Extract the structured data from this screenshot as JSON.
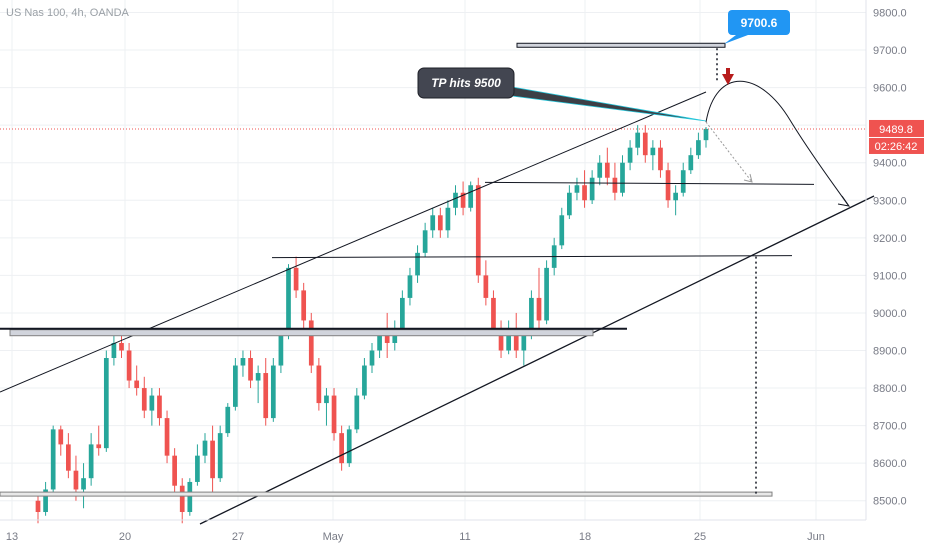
{
  "header": {
    "title": "US Nas 100, 4h, OANDA"
  },
  "chart_data": {
    "type": "candlestick",
    "xlabel": "",
    "ylabel": "",
    "ylim": [
      8470,
      9830
    ],
    "y_ticks": [
      "9800.0",
      "9700.0",
      "9600.0",
      "9500.0",
      "9400.0",
      "9300.0",
      "9200.0",
      "9100.0",
      "9000.0",
      "8900.0",
      "8800.0",
      "8700.0",
      "8600.0",
      "8500.0"
    ],
    "x_ticks": [
      "13",
      "20",
      "27",
      "May",
      "11",
      "18",
      "25",
      "Jun"
    ],
    "grid": true,
    "colors": {
      "up": "#26a69a",
      "down": "#ef5350",
      "price": "#ef5350",
      "callout": "#2196f3",
      "note": "#434651"
    },
    "price_label": "9489.8",
    "countdown_label": "02:26:42",
    "target_label": "9700.6",
    "annotation": "TP hits 9500",
    "key_levels": [
      9710,
      9345,
      9150,
      8950,
      8515
    ],
    "candles": [
      [
        8500,
        8520,
        8440,
        8470
      ],
      [
        8470,
        8550,
        8460,
        8530
      ],
      [
        8530,
        8700,
        8520,
        8690
      ],
      [
        8690,
        8700,
        8620,
        8650
      ],
      [
        8650,
        8680,
        8560,
        8580
      ],
      [
        8580,
        8620,
        8500,
        8530
      ],
      [
        8530,
        8600,
        8480,
        8560
      ],
      [
        8560,
        8680,
        8540,
        8650
      ],
      [
        8650,
        8700,
        8620,
        8640
      ],
      [
        8640,
        8900,
        8630,
        8880
      ],
      [
        8880,
        8950,
        8860,
        8920
      ],
      [
        8920,
        8960,
        8880,
        8900
      ],
      [
        8900,
        8920,
        8800,
        8820
      ],
      [
        8820,
        8860,
        8780,
        8800
      ],
      [
        8800,
        8830,
        8720,
        8740
      ],
      [
        8740,
        8800,
        8700,
        8780
      ],
      [
        8780,
        8800,
        8700,
        8720
      ],
      [
        8720,
        8740,
        8600,
        8620
      ],
      [
        8620,
        8640,
        8520,
        8540
      ],
      [
        8540,
        8560,
        8440,
        8470
      ],
      [
        8470,
        8560,
        8460,
        8550
      ],
      [
        8550,
        8650,
        8540,
        8620
      ],
      [
        8620,
        8680,
        8600,
        8660
      ],
      [
        8660,
        8700,
        8520,
        8560
      ],
      [
        8560,
        8700,
        8550,
        8680
      ],
      [
        8680,
        8760,
        8670,
        8750
      ],
      [
        8750,
        8880,
        8740,
        8860
      ],
      [
        8860,
        8900,
        8830,
        8880
      ],
      [
        8880,
        8900,
        8800,
        8820
      ],
      [
        8820,
        8860,
        8760,
        8840
      ],
      [
        8840,
        8880,
        8700,
        8720
      ],
      [
        8720,
        8880,
        8710,
        8860
      ],
      [
        8860,
        8960,
        8840,
        8940
      ],
      [
        8940,
        9130,
        8930,
        9120
      ],
      [
        9120,
        9150,
        9040,
        9060
      ],
      [
        9060,
        9080,
        8960,
        8980
      ],
      [
        8980,
        9000,
        8840,
        8860
      ],
      [
        8860,
        8880,
        8740,
        8760
      ],
      [
        8760,
        8800,
        8700,
        8780
      ],
      [
        8780,
        8800,
        8660,
        8680
      ],
      [
        8680,
        8700,
        8580,
        8600
      ],
      [
        8600,
        8700,
        8590,
        8690
      ],
      [
        8690,
        8800,
        8680,
        8780
      ],
      [
        8780,
        8880,
        8770,
        8860
      ],
      [
        8860,
        8920,
        8840,
        8900
      ],
      [
        8900,
        8960,
        8880,
        8940
      ],
      [
        8940,
        9000,
        8880,
        8920
      ],
      [
        8920,
        8980,
        8900,
        8960
      ],
      [
        8960,
        9060,
        8950,
        9040
      ],
      [
        9040,
        9120,
        9020,
        9100
      ],
      [
        9100,
        9180,
        9080,
        9160
      ],
      [
        9160,
        9240,
        9150,
        9220
      ],
      [
        9220,
        9280,
        9200,
        9260
      ],
      [
        9260,
        9280,
        9200,
        9220
      ],
      [
        9220,
        9300,
        9200,
        9280
      ],
      [
        9280,
        9340,
        9260,
        9320
      ],
      [
        9320,
        9350,
        9260,
        9280
      ],
      [
        9280,
        9350,
        9270,
        9340
      ],
      [
        9340,
        9360,
        9080,
        9100
      ],
      [
        9100,
        9140,
        9020,
        9040
      ],
      [
        9040,
        9060,
        8940,
        8960
      ],
      [
        8960,
        8980,
        8880,
        8900
      ],
      [
        8900,
        8980,
        8890,
        8960
      ],
      [
        8960,
        9000,
        8880,
        8900
      ],
      [
        8900,
        8960,
        8860,
        8940
      ],
      [
        8940,
        9060,
        8930,
        9040
      ],
      [
        9040,
        9120,
        8960,
        8980
      ],
      [
        8980,
        9140,
        8970,
        9120
      ],
      [
        9120,
        9200,
        9100,
        9180
      ],
      [
        9180,
        9280,
        9170,
        9260
      ],
      [
        9260,
        9340,
        9250,
        9320
      ],
      [
        9320,
        9360,
        9300,
        9340
      ],
      [
        9340,
        9380,
        9280,
        9300
      ],
      [
        9300,
        9380,
        9290,
        9360
      ],
      [
        9360,
        9420,
        9340,
        9400
      ],
      [
        9400,
        9440,
        9340,
        9360
      ],
      [
        9360,
        9400,
        9300,
        9320
      ],
      [
        9320,
        9420,
        9310,
        9400
      ],
      [
        9400,
        9460,
        9380,
        9440
      ],
      [
        9440,
        9500,
        9420,
        9480
      ],
      [
        9480,
        9500,
        9400,
        9420
      ],
      [
        9420,
        9460,
        9380,
        9440
      ],
      [
        9440,
        9460,
        9360,
        9380
      ],
      [
        9380,
        9400,
        9280,
        9300
      ],
      [
        9300,
        9340,
        9260,
        9320
      ],
      [
        9320,
        9400,
        9310,
        9380
      ],
      [
        9380,
        9440,
        9370,
        9420
      ],
      [
        9420,
        9480,
        9410,
        9460
      ],
      [
        9460,
        9495,
        9440,
        9490
      ]
    ]
  }
}
